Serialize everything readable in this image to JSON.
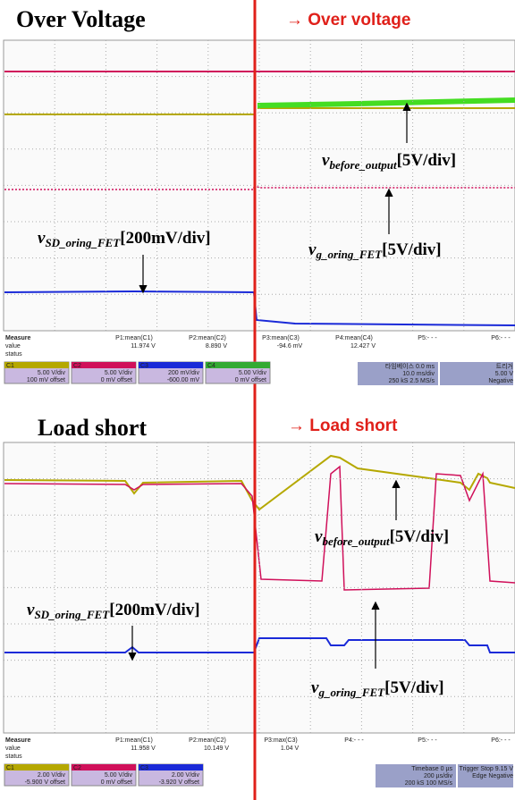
{
  "panels": [
    {
      "title": "Over Voltage",
      "annotation": "→ Over voltage",
      "labels": [
        {
          "symbol": "v",
          "subscript": "before_output",
          "scale": "[5V/div]"
        },
        {
          "symbol": "v",
          "subscript": "SD_oring_FET",
          "scale": "[200mV/div]"
        },
        {
          "symbol": "v",
          "subscript": "g_oring_FET",
          "scale": "[5V/div]"
        }
      ],
      "measure": {
        "header": [
          "Measure",
          "value",
          "status"
        ],
        "columns": [
          {
            "name": "P1:mean(C1)",
            "value": "11.974 V"
          },
          {
            "name": "P2:mean(C2)",
            "value": "8.890 V"
          },
          {
            "name": "P3:mean(C3)",
            "value": "-94.6 mV"
          },
          {
            "name": "P4:mean(C4)",
            "value": "12.427 V"
          },
          {
            "name": "P5:- - -",
            "value": ""
          },
          {
            "name": "P6:- - -",
            "value": ""
          }
        ]
      },
      "channels": [
        {
          "name": "C1",
          "scale": "5.00 V/div",
          "offset": "100 mV offset"
        },
        {
          "name": "C2",
          "scale": "5.00 V/div",
          "offset": "0 mV offset"
        },
        {
          "name": "C3",
          "scale": "200 mV/div",
          "offset": "-600.00 mV"
        },
        {
          "name": "C4",
          "scale": "5.00 V/div",
          "offset": "0 mV offset"
        }
      ],
      "timebase": [
        "타임베이스 0.0 ms",
        "10.0 ms/div",
        "250 kS 2.5 MS/s"
      ],
      "trigger": [
        "트리거",
        "5.00 V",
        "Negative"
      ]
    },
    {
      "title": "Load short",
      "annotation": "→ Load short",
      "labels": [
        {
          "symbol": "v",
          "subscript": "before_output",
          "scale": "[5V/div]"
        },
        {
          "symbol": "v",
          "subscript": "SD_oring_FET",
          "scale": "[200mV/div]"
        },
        {
          "symbol": "v",
          "subscript": "g_oring_FET",
          "scale": "[5V/div]"
        }
      ],
      "measure": {
        "header": [
          "Measure",
          "value",
          "status"
        ],
        "columns": [
          {
            "name": "P1:mean(C1)",
            "value": "11.958 V"
          },
          {
            "name": "P2:mean(C2)",
            "value": "10.149 V"
          },
          {
            "name": "P3:max(C3)",
            "value": "1.04 V"
          },
          {
            "name": "P4:- - -",
            "value": ""
          },
          {
            "name": "P5:- - -",
            "value": ""
          },
          {
            "name": "P6:- - -",
            "value": ""
          }
        ]
      },
      "channels": [
        {
          "name": "C1",
          "scale": "2.00 V/div",
          "offset": "-5.900 V offset"
        },
        {
          "name": "C2",
          "scale": "5.00 V/div",
          "offset": "0 mV offset"
        },
        {
          "name": "C3",
          "scale": "2.00 V/div",
          "offset": "-3.920 V offset"
        }
      ],
      "timebase": [
        "Timebase 0 µs",
        "200 µs/div",
        "200 kS 100 MS/s"
      ],
      "trigger": [
        "Trigger Stop 9.15 V",
        "Edge Negative"
      ]
    }
  ]
}
